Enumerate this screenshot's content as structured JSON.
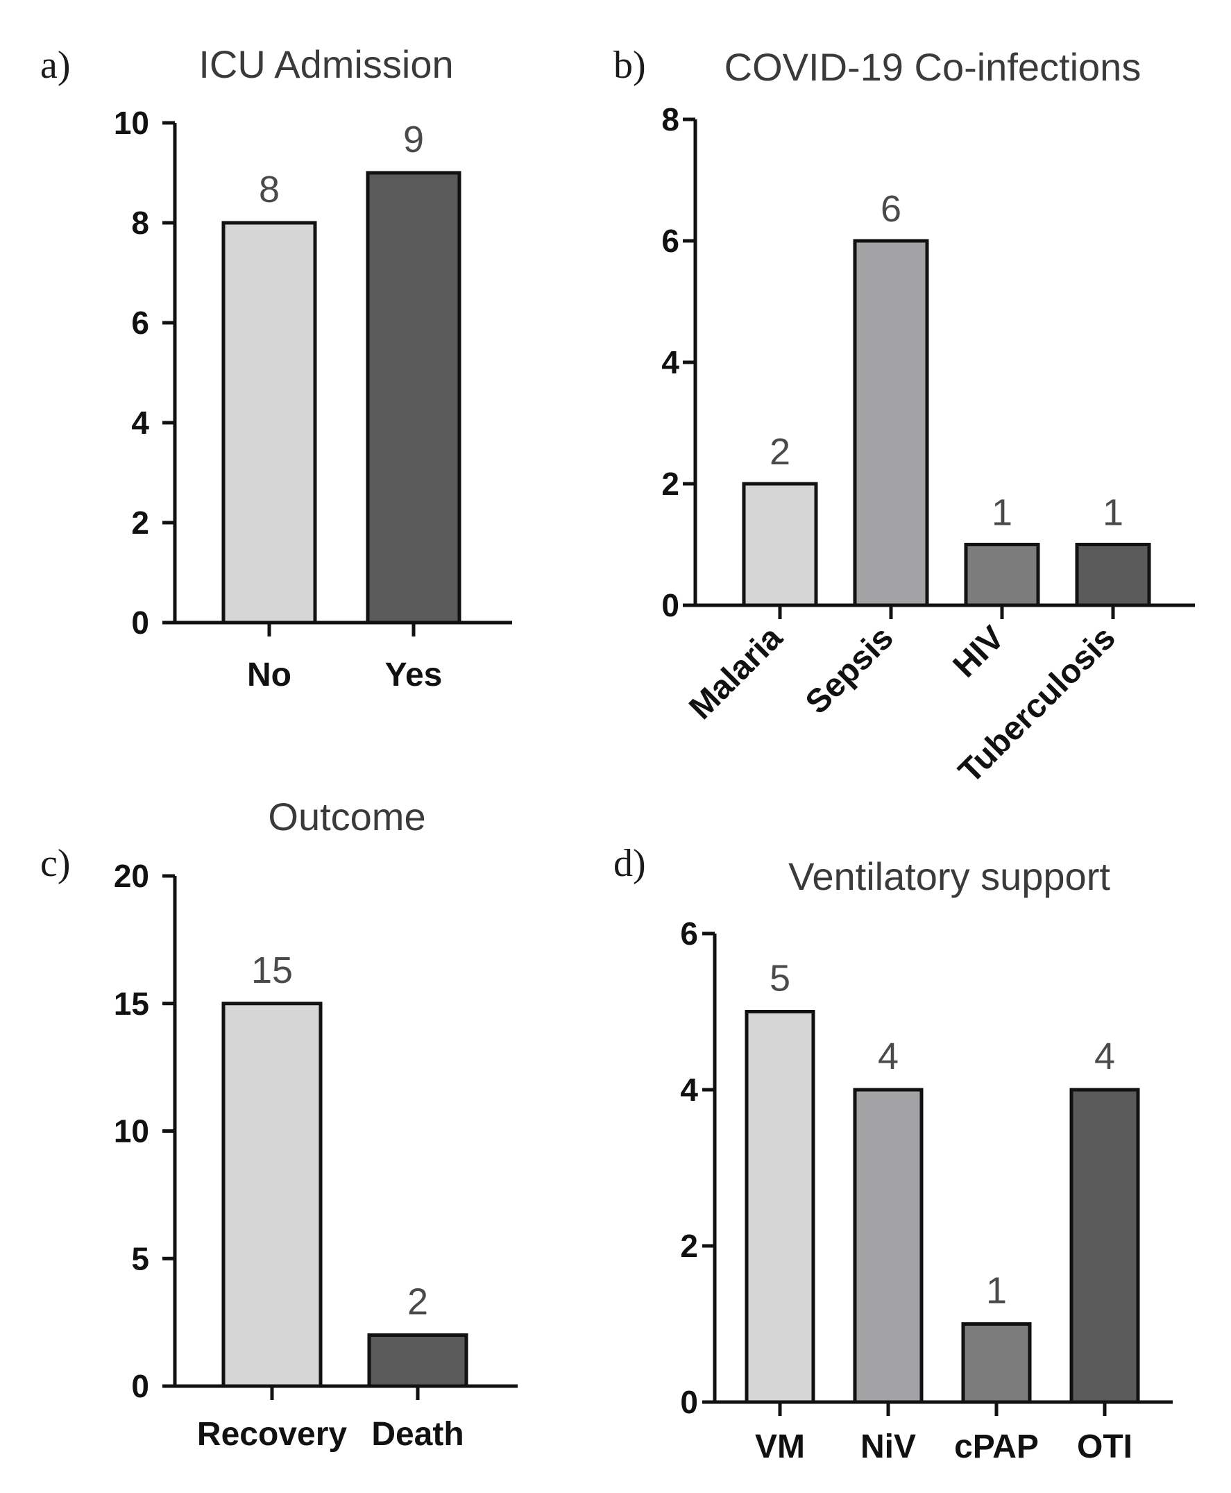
{
  "chart_data": [
    {
      "type": "bar",
      "panel_label": "a)",
      "title": "ICU  Admission",
      "categories": [
        "No",
        "Yes"
      ],
      "values": [
        8,
        9
      ],
      "ylim": [
        0,
        10
      ],
      "yticks": [
        0,
        2,
        4,
        6,
        8,
        10
      ],
      "bar_colors": [
        "#d6d6d6",
        "#5a5a5a"
      ],
      "xlabel": "",
      "ylabel": ""
    },
    {
      "type": "bar",
      "panel_label": "b)",
      "title": "COVID-19 Co-infections",
      "categories": [
        "Malaria",
        "Sepsis",
        "HIV",
        "Tuberculosis"
      ],
      "values": [
        2,
        6,
        1,
        1
      ],
      "ylim": [
        0,
        8
      ],
      "yticks": [
        0,
        2,
        4,
        6,
        8
      ],
      "bar_colors": [
        "#d6d6d6",
        "#a3a3a5",
        "#7c7c7c",
        "#5a5a5a"
      ],
      "rotate_labels": true,
      "xlabel": "",
      "ylabel": ""
    },
    {
      "type": "bar",
      "panel_label": "c)",
      "title": "Outcome",
      "categories": [
        "Recovery",
        "Death"
      ],
      "values": [
        15,
        2
      ],
      "ylim": [
        0,
        20
      ],
      "yticks": [
        0,
        5,
        10,
        15,
        20
      ],
      "bar_colors": [
        "#d6d6d6",
        "#5a5a5a"
      ],
      "xlabel": "",
      "ylabel": ""
    },
    {
      "type": "bar",
      "panel_label": "d)",
      "title": "Ventilatory support",
      "categories": [
        "VM",
        "NiV",
        "cPAP",
        "OTI"
      ],
      "values": [
        5,
        4,
        1,
        4
      ],
      "ylim": [
        0,
        6
      ],
      "yticks": [
        0,
        2,
        4,
        6
      ],
      "bar_colors": [
        "#d6d6d6",
        "#a3a3a5",
        "#7c7c7c",
        "#5a5a5a"
      ],
      "xlabel": "",
      "ylabel": ""
    }
  ]
}
